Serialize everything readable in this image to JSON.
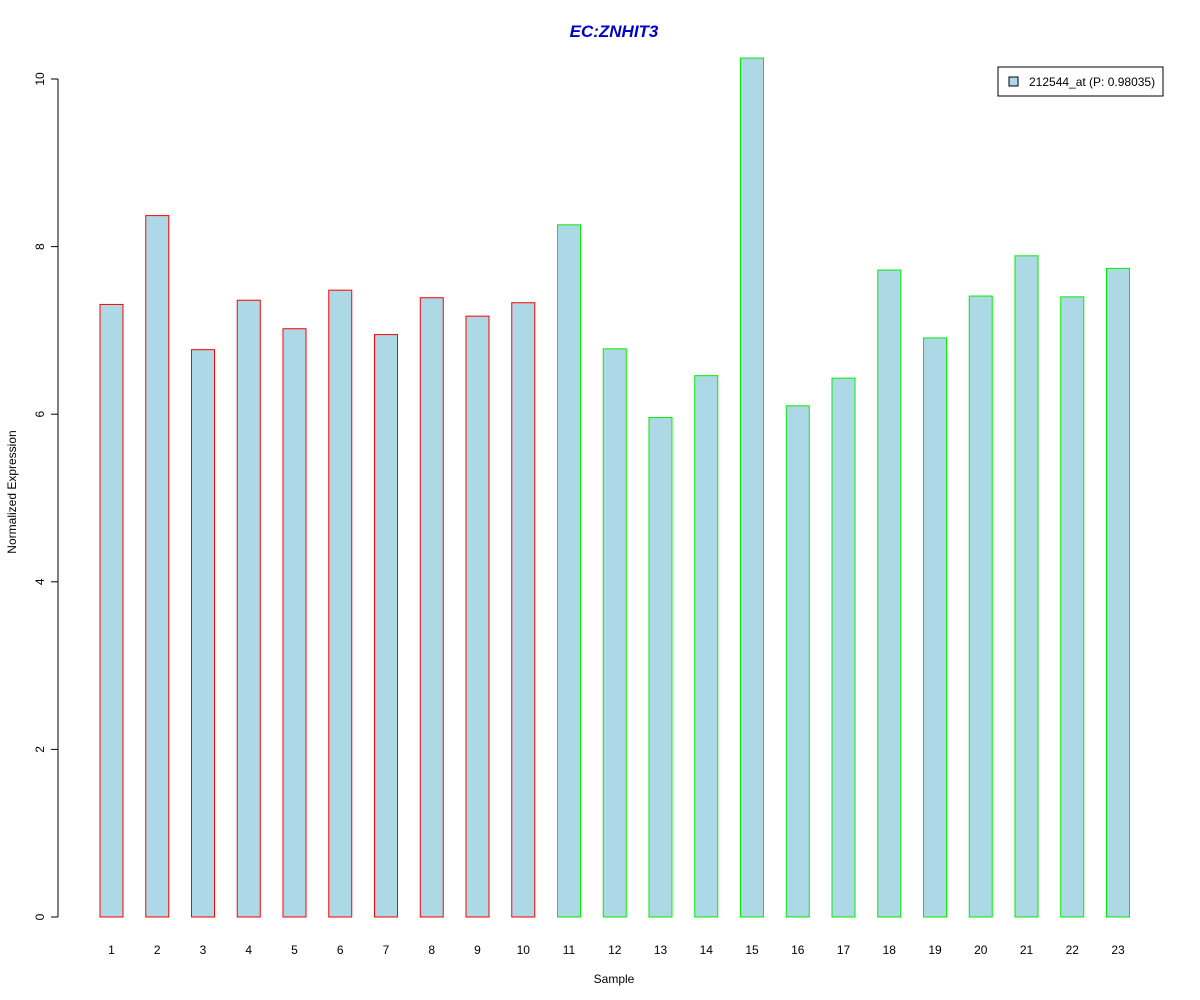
{
  "chart_data": {
    "type": "bar",
    "title": "EC:ZNHIT3",
    "xlabel": "Sample",
    "ylabel": "Normalized Expression",
    "ylim": [
      0,
      10.25
    ],
    "yticks": [
      "0",
      "2",
      "4",
      "6",
      "8",
      "10"
    ],
    "categories": [
      "1",
      "2",
      "3",
      "4",
      "5",
      "6",
      "7",
      "8",
      "9",
      "10",
      "11",
      "12",
      "13",
      "14",
      "15",
      "16",
      "17",
      "18",
      "19",
      "20",
      "21",
      "22",
      "23"
    ],
    "series": [
      {
        "name": "212544_at (P: 0.98035)",
        "values": [
          7.31,
          8.37,
          6.77,
          7.36,
          7.02,
          7.48,
          6.95,
          7.39,
          7.17,
          7.33,
          8.26,
          6.78,
          5.96,
          6.46,
          10.25,
          6.1,
          6.43,
          7.72,
          6.91,
          7.41,
          7.89,
          7.4,
          7.74
        ],
        "groups": [
          "A",
          "A",
          "A",
          "A",
          "A",
          "A",
          "A",
          "A",
          "A",
          "A",
          "B",
          "B",
          "B",
          "B",
          "B",
          "B",
          "B",
          "B",
          "B",
          "B",
          "B",
          "B",
          "B"
        ]
      }
    ],
    "legend": {
      "label": "212544_at (P: 0.98035)",
      "position": "top-right"
    },
    "grid": false,
    "colors": {
      "title": "#0000cc",
      "bar_fill": "#add8e6",
      "group_A_border": "#ff0000",
      "group_B_border": "#00ee00",
      "axis": "#000000"
    }
  }
}
